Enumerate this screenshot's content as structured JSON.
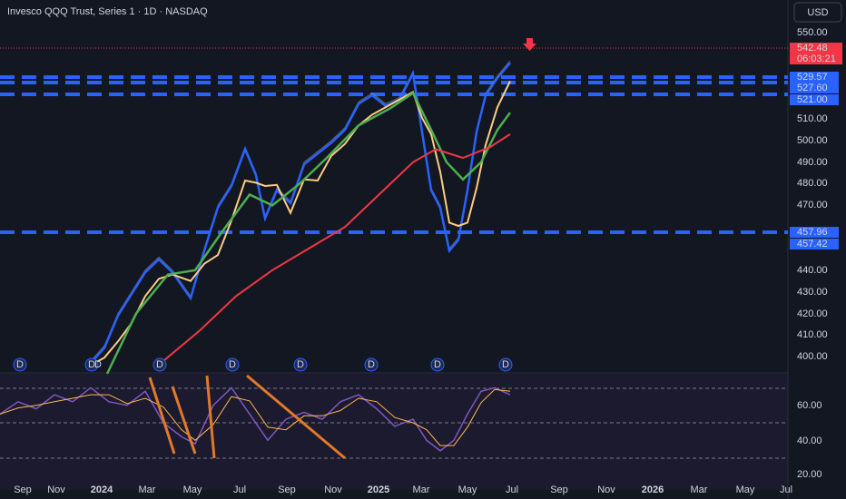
{
  "header": {
    "title": "Invesco QQQ Trust, Series 1 · 1D · NASDAQ",
    "currency": "USD"
  },
  "price_axis": {
    "labels": [
      "550.00",
      "510.00",
      "500.00",
      "490.00",
      "480.00",
      "470.00",
      "440.00",
      "430.00",
      "420.00",
      "410.00",
      "400.00"
    ]
  },
  "price_tags": {
    "last": {
      "price": "542.48",
      "countdown": "06:03:21"
    },
    "levels": [
      "529.57",
      "527.60",
      "521.00",
      "457.96",
      "457.42"
    ]
  },
  "rsi_axis": {
    "labels": [
      "60.00",
      "40.00",
      "20.00"
    ]
  },
  "time_axis": {
    "labels": [
      "Sep",
      "Nov",
      "2024",
      "Mar",
      "May",
      "Jul",
      "Sep",
      "Nov",
      "2025",
      "Mar",
      "May",
      "Jul",
      "Sep",
      "Nov",
      "2026",
      "Mar",
      "May",
      "Jul"
    ]
  },
  "dividend_markers": [
    "D",
    "D",
    "D",
    "D",
    "D",
    "D",
    "D",
    "D",
    "D"
  ]
}
